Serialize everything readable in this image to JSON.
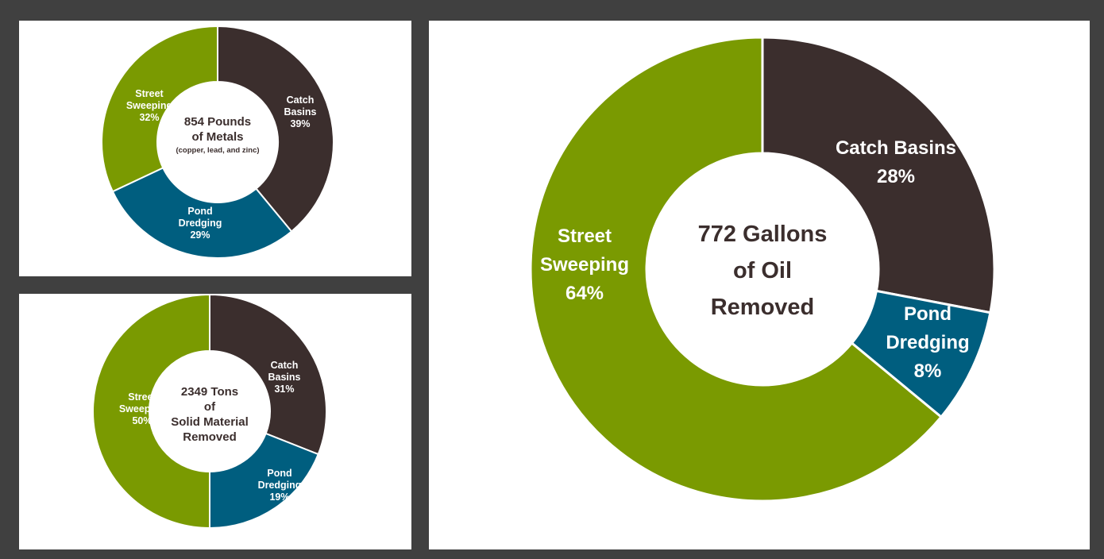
{
  "colors": {
    "background": "#404040",
    "catch_basins": "#3b2e2d",
    "pond_dredging": "#005e7f",
    "street_sweeping": "#7a9a01",
    "slice_border": "#ffffff",
    "center_text": "#3b2e2d"
  },
  "chart_data": [
    {
      "type": "pie",
      "donut": true,
      "center_lines": [
        "854 Pounds",
        "of Metals"
      ],
      "center_note": "(copper, lead, and zinc)",
      "slices": [
        {
          "label_lines": [
            "Catch",
            "Basins"
          ],
          "pct_label": "39%",
          "value": 39
        },
        {
          "label_lines": [
            "Pond",
            "Dredging"
          ],
          "pct_label": "29%",
          "value": 29
        },
        {
          "label_lines": [
            "Street",
            "Sweeping"
          ],
          "pct_label": "32%",
          "value": 32
        }
      ]
    },
    {
      "type": "pie",
      "donut": true,
      "center_lines": [
        "2349 Tons",
        "of",
        "Solid Material",
        "Removed"
      ],
      "center_note": "",
      "slices": [
        {
          "label_lines": [
            "Catch",
            "Basins"
          ],
          "pct_label": "31%",
          "value": 31
        },
        {
          "label_lines": [
            "Pond",
            "Dredging"
          ],
          "pct_label": "19%",
          "value": 19
        },
        {
          "label_lines": [
            "Street",
            "Sweeping"
          ],
          "pct_label": "50%",
          "value": 50
        }
      ]
    },
    {
      "type": "pie",
      "donut": true,
      "center_lines": [
        "772 Gallons",
        "of Oil",
        "Removed"
      ],
      "center_note": "",
      "slices": [
        {
          "label_lines": [
            "Catch Basins"
          ],
          "pct_label": "28%",
          "value": 28
        },
        {
          "label_lines": [
            "Pond",
            "Dredging"
          ],
          "pct_label": "8%",
          "value": 8
        },
        {
          "label_lines": [
            "Street",
            "Sweeping"
          ],
          "pct_label": "64%",
          "value": 64
        }
      ]
    }
  ]
}
